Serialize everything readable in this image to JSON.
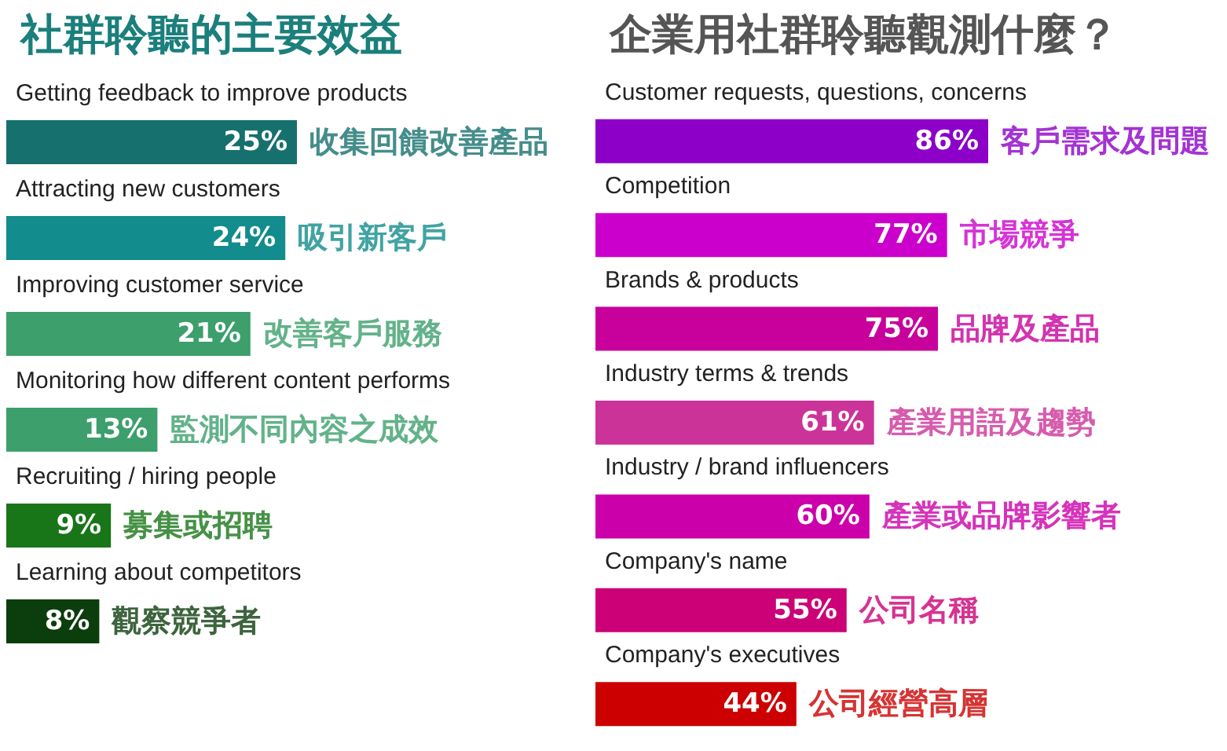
{
  "chart_data": [
    {
      "type": "bar",
      "orientation": "horizontal",
      "title": "社群聆聽的主要效益",
      "categories": [
        "Getting feedback to improve products",
        "Attracting new customers",
        "Improving customer service",
        "Monitoring how different content performs",
        "Recruiting / hiring people",
        "Learning about competitors"
      ],
      "values": [
        25,
        24,
        21,
        13,
        9,
        8
      ],
      "colors": [
        "#16706e",
        "#128c8c",
        "#3c9f6c",
        "#3c9f6c",
        "#187518",
        "#0c3d0c"
      ],
      "value_labels": [
        "25%",
        "24%",
        "21%",
        "13%",
        "9%",
        "8%"
      ],
      "annotations": [
        {
          "text": "收集回饋改善產品",
          "x": 25,
          "y": "Getting feedback to improve products"
        },
        {
          "text": "吸引新客戶",
          "x": 24,
          "y": "Attracting new customers"
        },
        {
          "text": "改善客戶服務",
          "x": 21,
          "y": "Improving customer service"
        },
        {
          "text": "監測不同內容之成效",
          "x": 13,
          "y": "Monitoring how different content performs"
        },
        {
          "text": "募集或招聘",
          "x": 9,
          "y": "Recruiting / hiring people"
        },
        {
          "text": "觀察競爭者",
          "x": 8,
          "y": "Learning about competitors"
        }
      ]
    },
    {
      "type": "bar",
      "orientation": "horizontal",
      "title": "企業用社群聆聽觀測什麼？",
      "categories": [
        "Customer requests, questions, concerns",
        "Competition",
        "Brands & products",
        "Industry terms & trends",
        "Industry / brand influencers",
        "Company's name",
        "Company's executives"
      ],
      "values": [
        86,
        77,
        75,
        61,
        60,
        55,
        44
      ],
      "colors": [
        "#8c00c8",
        "#cc00cc",
        "#c8009c",
        "#cc3399",
        "#cc00aa",
        "#cc0077",
        "#cc0000"
      ],
      "value_labels": [
        "86%",
        "77%",
        "75%",
        "61%",
        "60%",
        "55%",
        "44%"
      ],
      "annotations": [
        {
          "text": "客戶需求及問題",
          "x": 86,
          "y": "Customer requests, questions, concerns"
        },
        {
          "text": "市場競爭",
          "x": 77,
          "y": "Competition"
        },
        {
          "text": "品牌及產品",
          "x": 75,
          "y": "Brands & products"
        },
        {
          "text": "產業用語及趨勢",
          "x": 61,
          "y": "Industry terms & trends"
        },
        {
          "text": "產業或品牌影響者",
          "x": 60,
          "y": "Industry / brand influencers"
        },
        {
          "text": "公司名稱",
          "x": 55,
          "y": "Company's name"
        },
        {
          "text": "公司經營高層",
          "x": 44,
          "y": "Company's executives"
        }
      ]
    }
  ]
}
